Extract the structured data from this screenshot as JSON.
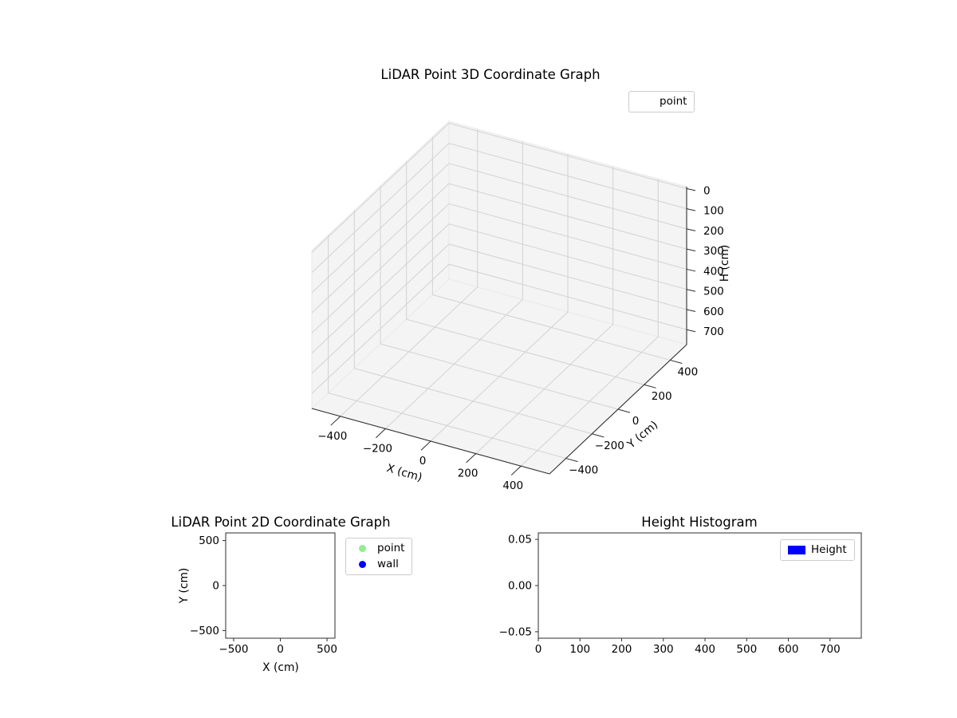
{
  "figure": {
    "background": "#ffffff"
  },
  "chart_data": [
    {
      "id": "lidar-3d",
      "type": "scatter",
      "projection": "3d",
      "title": "LiDAR Point 3D Coordinate Graph",
      "xlabel": "X (cm)",
      "ylabel": "Y (cm)",
      "zlabel": "H (cm)",
      "xticks": [
        -400,
        -200,
        0,
        200,
        400
      ],
      "xtick_labels": [
        "−400",
        "−200",
        "0",
        "200",
        "400"
      ],
      "yticks": [
        -400,
        -200,
        0,
        200,
        400
      ],
      "ytick_labels": [
        "−400",
        "−200",
        "0",
        "200",
        "400"
      ],
      "zticks": [
        0,
        100,
        200,
        300,
        400,
        500,
        600,
        700
      ],
      "ztick_labels": [
        "0",
        "100",
        "200",
        "300",
        "400",
        "500",
        "600",
        "700"
      ],
      "zaxis_inverted": true,
      "grid": true,
      "legend": [
        {
          "label": "point",
          "marker": "circle",
          "marker_visible": false
        }
      ],
      "series": [
        {
          "name": "point",
          "points": []
        }
      ]
    },
    {
      "id": "lidar-2d",
      "type": "scatter",
      "title": "LiDAR Point 2D Coordinate Graph",
      "xlabel": "X (cm)",
      "ylabel": "Y (cm)",
      "xticks": [
        -500,
        0,
        500
      ],
      "xtick_labels": [
        "−500",
        "0",
        "500"
      ],
      "yticks": [
        -500,
        0,
        500
      ],
      "ytick_labels": [
        "−500",
        "0",
        "500"
      ],
      "xlim": [
        -585,
        585
      ],
      "ylim": [
        -585,
        585
      ],
      "grid": false,
      "legend": [
        {
          "label": "point",
          "marker": "circle",
          "color": "#90ee90"
        },
        {
          "label": "wall",
          "marker": "circle",
          "color": "#0000ff"
        }
      ],
      "series": [
        {
          "name": "point",
          "color": "#90ee90",
          "points": []
        },
        {
          "name": "wall",
          "color": "#0000ff",
          "points": []
        }
      ]
    },
    {
      "id": "height-histogram",
      "type": "bar",
      "title": "Height Histogram",
      "xticks": [
        0,
        100,
        200,
        300,
        400,
        500,
        600,
        700
      ],
      "xtick_labels": [
        "0",
        "100",
        "200",
        "300",
        "400",
        "500",
        "600",
        "700"
      ],
      "yticks": [
        -0.05,
        0,
        0.05
      ],
      "ytick_labels": [
        "−0.05",
        "0.00",
        "0.05"
      ],
      "xlim": [
        0,
        775
      ],
      "ylim": [
        -0.057,
        0.057
      ],
      "grid": false,
      "legend": [
        {
          "label": "Height",
          "marker": "rect",
          "color": "#0000ff"
        }
      ],
      "values": []
    }
  ]
}
